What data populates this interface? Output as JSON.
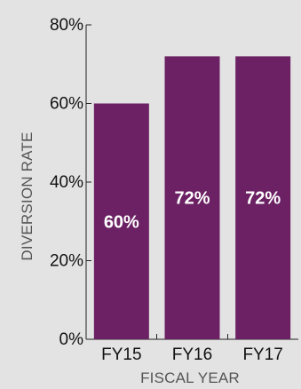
{
  "chart_data": {
    "type": "bar",
    "categories": [
      "FY15",
      "FY16",
      "FY17"
    ],
    "values": [
      60,
      72,
      72
    ],
    "data_labels": [
      "60%",
      "72%",
      "72%"
    ],
    "xlabel": "FISCAL YEAR",
    "ylabel": "DIVERSION RATE",
    "ylim": [
      0,
      80
    ],
    "yticks": [
      0,
      20,
      40,
      60,
      80
    ],
    "ytick_labels": [
      "0%",
      "20%",
      "40%",
      "60%",
      "80%"
    ],
    "grid": false,
    "bar_color": "#6b2163",
    "background_color": "#e3e3e3"
  }
}
